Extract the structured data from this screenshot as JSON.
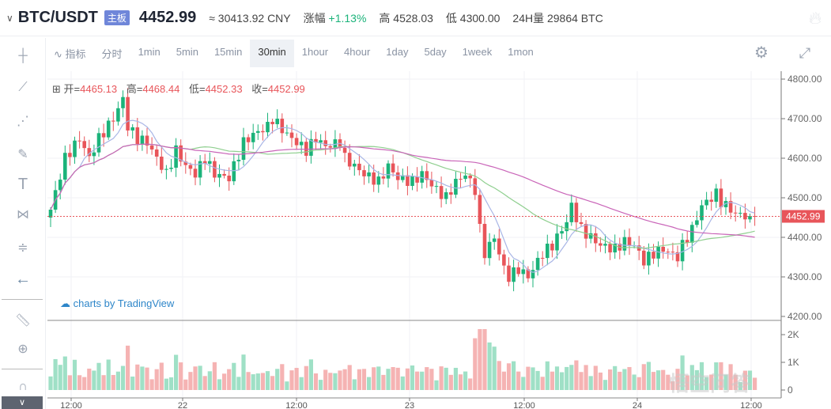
{
  "header": {
    "pair": "BTC/USDT",
    "badge": "主板",
    "price": "4452.99",
    "cny": "≈ 30413.92 CNY",
    "change_label": "涨幅",
    "change": "+1.13%",
    "high_label": "高",
    "high": "4528.03",
    "low_label": "低",
    "low": "4300.00",
    "vol_label": "24H量",
    "vol": "29864 BTC"
  },
  "toolbar": {
    "indicator": "指标",
    "tabs": [
      "分时",
      "1min",
      "5min",
      "15min",
      "30min",
      "1hour",
      "4hour",
      "1day",
      "5day",
      "1week",
      "1mon"
    ],
    "active": "30min"
  },
  "ohlc": {
    "o_label": "开=",
    "o": "4465.13",
    "h_label": "高=",
    "h": "4468.44",
    "l_label": "低=",
    "l": "4452.33",
    "c_label": "收=",
    "c": "4452.99"
  },
  "branding": "charts by TradingView",
  "watermark": "悟空问答",
  "colors": {
    "up": "#1bb37a",
    "down": "#e8555a",
    "up_vol": "#9fe0c6",
    "down_vol": "#f5b3b3",
    "ma1": "#a9b6e6",
    "ma2": "#8fcf8f",
    "ma3": "#c964b8"
  },
  "chart_data": {
    "type": "candlestick",
    "price_axis": {
      "ticks": [
        "4800.00",
        "4700.00",
        "4600.00",
        "4500.00",
        "4400.00",
        "4300.00",
        "4200.00"
      ],
      "range": [
        4200,
        4800
      ]
    },
    "volume_axis": {
      "ticks": [
        "2K",
        "1K",
        "0"
      ],
      "range": [
        0,
        2200
      ]
    },
    "time_ticks": [
      "12:00",
      "22",
      "12:00",
      "23",
      "12:00",
      "24",
      "12:00"
    ],
    "last_price": 4452.99,
    "last_price_label": "4452.99",
    "candle_count": 147,
    "close_keypoints": [
      [
        0,
        4470
      ],
      [
        3,
        4600
      ],
      [
        6,
        4650
      ],
      [
        8,
        4600
      ],
      [
        10,
        4650
      ],
      [
        13,
        4700
      ],
      [
        15,
        4750
      ],
      [
        16,
        4680
      ],
      [
        18,
        4650
      ],
      [
        20,
        4640
      ],
      [
        22,
        4600
      ],
      [
        24,
        4560
      ],
      [
        26,
        4620
      ],
      [
        28,
        4580
      ],
      [
        30,
        4560
      ],
      [
        32,
        4600
      ],
      [
        34,
        4560
      ],
      [
        37,
        4550
      ],
      [
        38,
        4580
      ],
      [
        40,
        4640
      ],
      [
        42,
        4660
      ],
      [
        45,
        4680
      ],
      [
        46,
        4700
      ],
      [
        49,
        4660
      ],
      [
        51,
        4640
      ],
      [
        53,
        4620
      ],
      [
        55,
        4650
      ],
      [
        57,
        4630
      ],
      [
        60,
        4640
      ],
      [
        61,
        4600
      ],
      [
        63,
        4580
      ],
      [
        65,
        4560
      ],
      [
        68,
        4540
      ],
      [
        70,
        4580
      ],
      [
        72,
        4550
      ],
      [
        75,
        4540
      ],
      [
        77,
        4560
      ],
      [
        80,
        4520
      ],
      [
        82,
        4500
      ],
      [
        84,
        4540
      ],
      [
        86,
        4560
      ],
      [
        88,
        4520
      ],
      [
        89,
        4420
      ],
      [
        90,
        4360
      ],
      [
        92,
        4400
      ],
      [
        94,
        4320
      ],
      [
        95,
        4300
      ],
      [
        97,
        4320
      ],
      [
        99,
        4300
      ],
      [
        100,
        4320
      ],
      [
        102,
        4360
      ],
      [
        104,
        4380
      ],
      [
        107,
        4440
      ],
      [
        108,
        4480
      ],
      [
        110,
        4420
      ],
      [
        112,
        4400
      ],
      [
        114,
        4380
      ],
      [
        117,
        4370
      ],
      [
        119,
        4390
      ],
      [
        121,
        4380
      ],
      [
        123,
        4340
      ],
      [
        125,
        4360
      ],
      [
        127,
        4370
      ],
      [
        130,
        4350
      ],
      [
        131,
        4380
      ],
      [
        133,
        4420
      ],
      [
        135,
        4480
      ],
      [
        138,
        4510
      ],
      [
        139,
        4490
      ],
      [
        142,
        4460
      ],
      [
        144,
        4455
      ],
      [
        146,
        4453
      ]
    ]
  }
}
